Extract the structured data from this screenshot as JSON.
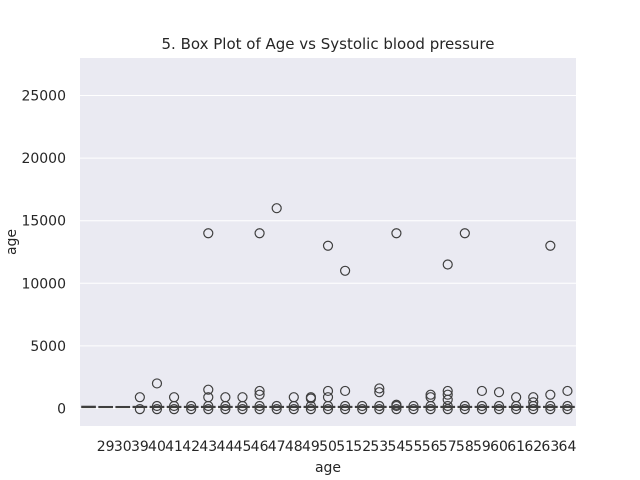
{
  "chart_data": {
    "type": "box",
    "title": "5. Box Plot of Age vs Systolic blood pressure",
    "xlabel": "age",
    "ylabel": "age",
    "ylim": [
      -1400,
      28000
    ],
    "yticks": [
      0,
      5000,
      10000,
      15000,
      20000,
      25000
    ],
    "categories": [
      "",
      "29",
      "30",
      "39",
      "40",
      "41",
      "42",
      "43",
      "44",
      "45",
      "46",
      "47",
      "48",
      "49",
      "50",
      "51",
      "52",
      "53",
      "54",
      "55",
      "56",
      "57",
      "58",
      "59",
      "60",
      "61",
      "62",
      "63",
      "64"
    ],
    "grid": true,
    "box_color": "#4c72b0",
    "first_box_color": "#dd8452",
    "boxes": [
      {
        "category": "",
        "q1": 110,
        "median": 120,
        "q3": 140,
        "whisker_low": 90,
        "whisker_high": 160,
        "outliers": []
      },
      {
        "category": "29",
        "q1": 110,
        "median": 115,
        "q3": 120,
        "whisker_low": 100,
        "whisker_high": 130,
        "outliers": []
      },
      {
        "category": "30",
        "q1": 110,
        "median": 115,
        "q3": 120,
        "whisker_low": 100,
        "whisker_high": 130,
        "outliers": []
      },
      {
        "category": "39",
        "q1": 110,
        "median": 120,
        "q3": 130,
        "whisker_low": 95,
        "whisker_high": 160,
        "outliers": [
          900,
          -50
        ]
      },
      {
        "category": "40",
        "q1": 110,
        "median": 120,
        "q3": 130,
        "whisker_low": 95,
        "whisker_high": 160,
        "outliers": [
          2000,
          200,
          -50
        ]
      },
      {
        "category": "41",
        "q1": 110,
        "median": 120,
        "q3": 130,
        "whisker_low": 95,
        "whisker_high": 160,
        "outliers": [
          900,
          200,
          -50
        ]
      },
      {
        "category": "42",
        "q1": 110,
        "median": 120,
        "q3": 130,
        "whisker_low": 95,
        "whisker_high": 160,
        "outliers": [
          200,
          -50
        ]
      },
      {
        "category": "43",
        "q1": 110,
        "median": 120,
        "q3": 130,
        "whisker_low": 95,
        "whisker_high": 160,
        "outliers": [
          14000,
          1500,
          900,
          200,
          -50
        ]
      },
      {
        "category": "44",
        "q1": 110,
        "median": 120,
        "q3": 130,
        "whisker_low": 95,
        "whisker_high": 160,
        "outliers": [
          900,
          200,
          -50
        ]
      },
      {
        "category": "45",
        "q1": 110,
        "median": 120,
        "q3": 130,
        "whisker_low": 95,
        "whisker_high": 160,
        "outliers": [
          900,
          200,
          -50
        ]
      },
      {
        "category": "46",
        "q1": 110,
        "median": 120,
        "q3": 130,
        "whisker_low": 95,
        "whisker_high": 160,
        "outliers": [
          14000,
          1400,
          1100,
          200,
          -50
        ]
      },
      {
        "category": "47",
        "q1": 110,
        "median": 120,
        "q3": 130,
        "whisker_low": 95,
        "whisker_high": 160,
        "outliers": [
          16000,
          200,
          -50
        ]
      },
      {
        "category": "48",
        "q1": 110,
        "median": 120,
        "q3": 130,
        "whisker_low": 95,
        "whisker_high": 160,
        "outliers": [
          900,
          200,
          -50
        ]
      },
      {
        "category": "49",
        "q1": 110,
        "median": 120,
        "q3": 130,
        "whisker_low": 95,
        "whisker_high": 160,
        "outliers": [
          900,
          800,
          200,
          -50
        ]
      },
      {
        "category": "50",
        "q1": 110,
        "median": 120,
        "q3": 130,
        "whisker_low": 95,
        "whisker_high": 160,
        "outliers": [
          13000,
          1400,
          900,
          200,
          -50
        ]
      },
      {
        "category": "51",
        "q1": 110,
        "median": 120,
        "q3": 130,
        "whisker_low": 95,
        "whisker_high": 160,
        "outliers": [
          11000,
          1400,
          200,
          -50
        ]
      },
      {
        "category": "52",
        "q1": 110,
        "median": 120,
        "q3": 130,
        "whisker_low": 95,
        "whisker_high": 160,
        "outliers": [
          200,
          -50
        ]
      },
      {
        "category": "53",
        "q1": 110,
        "median": 120,
        "q3": 130,
        "whisker_low": 95,
        "whisker_high": 160,
        "outliers": [
          1600,
          1300,
          200,
          -50
        ]
      },
      {
        "category": "54",
        "q1": 110,
        "median": 120,
        "q3": 130,
        "whisker_low": 95,
        "whisker_high": 160,
        "outliers": [
          14000,
          300,
          200,
          -50
        ]
      },
      {
        "category": "55",
        "q1": 110,
        "median": 120,
        "q3": 130,
        "whisker_low": 95,
        "whisker_high": 160,
        "outliers": [
          200,
          -50
        ]
      },
      {
        "category": "56",
        "q1": 110,
        "median": 120,
        "q3": 130,
        "whisker_low": 95,
        "whisker_high": 160,
        "outliers": [
          1100,
          900,
          200,
          -50
        ]
      },
      {
        "category": "57",
        "q1": 110,
        "median": 120,
        "q3": 130,
        "whisker_low": 95,
        "whisker_high": 160,
        "outliers": [
          11500,
          1400,
          1100,
          700,
          200,
          -50
        ]
      },
      {
        "category": "58",
        "q1": 110,
        "median": 120,
        "q3": 130,
        "whisker_low": 95,
        "whisker_high": 160,
        "outliers": [
          14000,
          200,
          -50
        ]
      },
      {
        "category": "59",
        "q1": 110,
        "median": 120,
        "q3": 130,
        "whisker_low": 95,
        "whisker_high": 160,
        "outliers": [
          1400,
          200,
          -50
        ]
      },
      {
        "category": "60",
        "q1": 110,
        "median": 120,
        "q3": 130,
        "whisker_low": 95,
        "whisker_high": 160,
        "outliers": [
          1300,
          200,
          -50
        ]
      },
      {
        "category": "61",
        "q1": 110,
        "median": 120,
        "q3": 130,
        "whisker_low": 95,
        "whisker_high": 160,
        "outliers": [
          900,
          200,
          -50
        ]
      },
      {
        "category": "62",
        "q1": 110,
        "median": 120,
        "q3": 130,
        "whisker_low": 95,
        "whisker_high": 160,
        "outliers": [
          900,
          500,
          200,
          -50
        ]
      },
      {
        "category": "63",
        "q1": 110,
        "median": 120,
        "q3": 130,
        "whisker_low": 95,
        "whisker_high": 160,
        "outliers": [
          13000,
          1100,
          200,
          -50
        ]
      },
      {
        "category": "64",
        "q1": 110,
        "median": 120,
        "q3": 130,
        "whisker_low": 95,
        "whisker_high": 160,
        "outliers": [
          1400,
          200,
          -50
        ]
      }
    ]
  }
}
